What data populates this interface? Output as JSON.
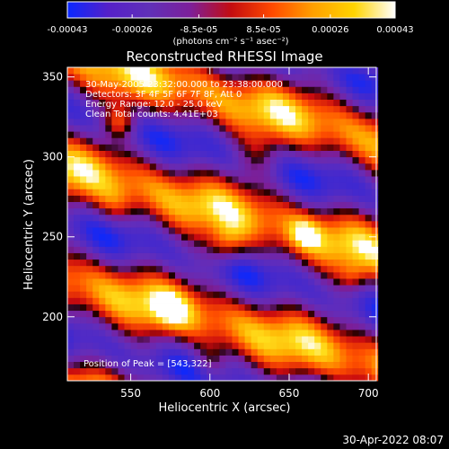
{
  "chart_data": {
    "type": "heatmap",
    "title": "Reconstructed RHESSI Image",
    "xlabel": "Heliocentric X (arcsec)",
    "ylabel": "Heliocentric Y (arcsec)",
    "xlim": [
      510,
      705
    ],
    "ylim": [
      160,
      356
    ],
    "x_ticks": [
      550,
      600,
      650,
      700
    ],
    "y_ticks": [
      200,
      250,
      300,
      350
    ],
    "colorbar": {
      "min": -0.00043,
      "max": 0.00043,
      "tick_values": [
        -0.00043,
        -0.00026,
        -8.5e-05,
        8.5e-05,
        0.00026,
        0.00043
      ],
      "tick_labels": [
        "-0.00043",
        "-0.00026",
        "-8.5e-05",
        "8.5e-05",
        "0.00026",
        "0.00043"
      ],
      "units": "(photons cm⁻² s⁻¹ asec⁻²)",
      "colors": [
        "#0a28ff",
        "#5520c8",
        "#6030b8",
        "#7d1f9a",
        "#c40c10",
        "#ff4a00",
        "#ffa000",
        "#ffd400",
        "#ffffff"
      ]
    },
    "annotations": [
      "30-May-2005 23:32:00.000 to 23:38:00.000",
      "Detectors: 3F 4F 5F 6F 7F 8F, Att 0",
      "Energy Range: 12.0 - 25.0 keV",
      "Clean  Total counts: 4.41E+03"
    ],
    "peak_label": "Position of Peak = [543,322]",
    "grid": false
  },
  "timestamp": "30-Apr-2022 08:07"
}
